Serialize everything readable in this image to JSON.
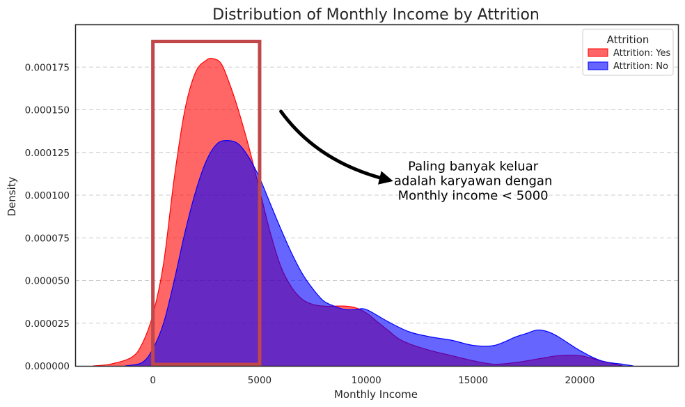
{
  "chart_data": {
    "type": "area",
    "title": "Distribution of Monthly Income by Attrition",
    "xlabel": "Monthly Income",
    "ylabel": "Density",
    "xlim": [
      -3640,
      24600
    ],
    "ylim": [
      0,
      0.0002
    ],
    "xticks": [
      0,
      5000,
      10000,
      15000,
      20000
    ],
    "xtick_labels": [
      "0",
      "5000",
      "10000",
      "15000",
      "20000"
    ],
    "yticks": [
      0,
      2.5e-05,
      5e-05,
      7.5e-05,
      0.0001,
      0.000125,
      0.00015,
      0.000175
    ],
    "ytick_labels": [
      "0.000000",
      "0.000025",
      "0.000050",
      "0.000075",
      "0.000100",
      "0.000125",
      "0.000150",
      "0.000175"
    ],
    "grid": "y, dashed",
    "legend": {
      "title": "Attrition",
      "position": "top-right",
      "entries": [
        "Attrition: Yes",
        "Attrition: No"
      ]
    },
    "series": [
      {
        "name": "Attrition: Yes",
        "fill": "#ff0000",
        "stroke": "#ff0000",
        "opacity": 0.6,
        "x": [
          -2800,
          -2000,
          -1000,
          -500,
          0,
          500,
          1000,
          1500,
          2000,
          2500,
          2800,
          3200,
          3600,
          4000,
          4500,
          5000,
          5500,
          6000,
          6500,
          7000,
          7500,
          8000,
          8500,
          9000,
          9500,
          10000,
          10500,
          11000,
          11500,
          12000,
          13000,
          14000,
          15000,
          16000,
          17000,
          18000,
          19000,
          20000,
          21000,
          22000
        ],
        "y": [
          0,
          1e-06,
          5e-06,
          1.3e-05,
          3e-05,
          6e-05,
          0.00011,
          0.00015,
          0.000172,
          0.000179,
          0.00018,
          0.000177,
          0.000165,
          0.00015,
          0.000128,
          0.000103,
          7.8e-05,
          5.8e-05,
          4.6e-05,
          3.9e-05,
          3.6e-05,
          3.5e-05,
          3.5e-05,
          3.5e-05,
          3.4e-05,
          3.1e-05,
          2.6e-05,
          2.1e-05,
          1.6e-05,
          1.3e-05,
          9e-06,
          6e-06,
          3e-06,
          1e-06,
          2e-06,
          4e-06,
          6e-06,
          6e-06,
          3e-06,
          0
        ]
      },
      {
        "name": "Attrition: No",
        "fill": "#0000ff",
        "stroke": "#0000ff",
        "opacity": 0.6,
        "x": [
          -1300,
          -500,
          0,
          500,
          1000,
          1500,
          2000,
          2500,
          3000,
          3500,
          4000,
          4500,
          5000,
          5500,
          6000,
          6500,
          7000,
          7500,
          8000,
          8500,
          9000,
          9500,
          10000,
          11000,
          12000,
          13000,
          14000,
          15000,
          16000,
          17000,
          17500,
          18000,
          18500,
          19000,
          20000,
          21000,
          22000,
          22500
        ],
        "y": [
          0,
          2e-06,
          1e-05,
          2.5e-05,
          5e-05,
          7.8e-05,
          0.000102,
          0.00012,
          0.00013,
          0.000132,
          0.00013,
          0.000122,
          0.00011,
          9.5e-05,
          8e-05,
          6.6e-05,
          5.4e-05,
          4.5e-05,
          3.8e-05,
          3.5e-05,
          3.3e-05,
          3.3e-05,
          3.3e-05,
          2.6e-05,
          2e-05,
          1.7e-05,
          1.5e-05,
          1.2e-05,
          1.2e-05,
          1.7e-05,
          1.9e-05,
          2.1e-05,
          2e-05,
          1.7e-05,
          9e-06,
          3e-06,
          1e-06,
          0
        ]
      }
    ],
    "annotations": {
      "box": {
        "x0": 0,
        "x1": 5000,
        "y0": 0,
        "y1": 0.00019,
        "color": "#c0474a"
      },
      "arrow": {
        "from": [
          6000,
          0.000149
        ],
        "to": [
          11000,
          0.000109
        ],
        "color": "#000000"
      },
      "text_lines": [
        "Paling banyak keluar",
        "adalah karyawan dengan",
        "Monthly income < 5000"
      ],
      "text_anchor": [
        15000,
        0.000106
      ]
    }
  }
}
